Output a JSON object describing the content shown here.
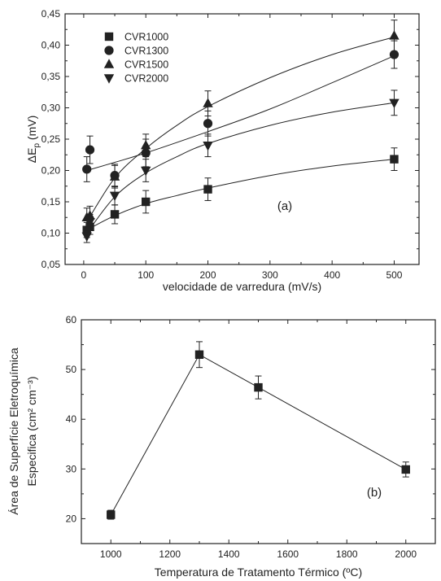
{
  "chart_data": [
    {
      "type": "scatter",
      "panel_label": "(a)",
      "xlabel": "velocidade de varredura (mV/s)",
      "ylabel_main": "ΔE",
      "ylabel_sub": "p",
      "ylabel_unit": " (mV)",
      "xlim": [
        -30,
        540
      ],
      "ylim": [
        0.05,
        0.45
      ],
      "xticks": [
        0,
        100,
        200,
        300,
        400,
        500
      ],
      "yticks": [
        0.05,
        0.1,
        0.15,
        0.2,
        0.25,
        0.3,
        0.35,
        0.4,
        0.45
      ],
      "ytick_labels": [
        "0,05",
        "0,10",
        "0,15",
        "0,20",
        "0,25",
        "0,30",
        "0,35",
        "0,40",
        "0,45"
      ],
      "legend_position": "top-left",
      "series": [
        {
          "name": "CVR1000",
          "marker": "square",
          "points": [
            {
              "x": 5,
              "y": 0.105,
              "err": 0.012
            },
            {
              "x": 10,
              "y": 0.11,
              "err": 0.012
            },
            {
              "x": 50,
              "y": 0.13,
              "err": 0.015
            },
            {
              "x": 100,
              "y": 0.15,
              "err": 0.018
            },
            {
              "x": 200,
              "y": 0.17,
              "err": 0.018
            },
            {
              "x": 500,
              "y": 0.218,
              "err": 0.018
            }
          ],
          "fit": [
            [
              5,
              0.105
            ],
            [
              50,
              0.128
            ],
            [
              100,
              0.147
            ],
            [
              150,
              0.16
            ],
            [
              200,
              0.172
            ],
            [
              300,
              0.192
            ],
            [
              400,
              0.207
            ],
            [
              500,
              0.218
            ]
          ]
        },
        {
          "name": "CVR1300",
          "marker": "circle",
          "points": [
            {
              "x": 5,
              "y": 0.202,
              "err": 0.02
            },
            {
              "x": 10,
              "y": 0.233,
              "err": 0.022
            },
            {
              "x": 50,
              "y": 0.192,
              "err": 0.018
            },
            {
              "x": 100,
              "y": 0.228,
              "err": 0.022
            },
            {
              "x": 200,
              "y": 0.275,
              "err": 0.02
            },
            {
              "x": 500,
              "y": 0.385,
              "err": 0.022
            }
          ],
          "fit": [
            [
              5,
              0.2
            ],
            [
              50,
              0.213
            ],
            [
              100,
              0.228
            ],
            [
              200,
              0.262
            ],
            [
              300,
              0.298
            ],
            [
              400,
              0.34
            ],
            [
              500,
              0.383
            ]
          ]
        },
        {
          "name": "CVR1500",
          "marker": "triangle-up",
          "points": [
            {
              "x": 5,
              "y": 0.125,
              "err": 0.015
            },
            {
              "x": 10,
              "y": 0.128,
              "err": 0.015
            },
            {
              "x": 50,
              "y": 0.19,
              "err": 0.018
            },
            {
              "x": 100,
              "y": 0.24,
              "err": 0.018
            },
            {
              "x": 200,
              "y": 0.307,
              "err": 0.02
            },
            {
              "x": 500,
              "y": 0.415,
              "err": 0.025
            }
          ],
          "fit": [
            [
              5,
              0.118
            ],
            [
              50,
              0.188
            ],
            [
              100,
              0.235
            ],
            [
              150,
              0.272
            ],
            [
              200,
              0.302
            ],
            [
              300,
              0.348
            ],
            [
              400,
              0.385
            ],
            [
              500,
              0.413
            ]
          ]
        },
        {
          "name": "CVR2000",
          "marker": "triangle-down",
          "points": [
            {
              "x": 5,
              "y": 0.095,
              "err": 0.01
            },
            {
              "x": 10,
              "y": 0.118,
              "err": 0.012
            },
            {
              "x": 50,
              "y": 0.16,
              "err": 0.015
            },
            {
              "x": 100,
              "y": 0.2,
              "err": 0.018
            },
            {
              "x": 200,
              "y": 0.24,
              "err": 0.018
            },
            {
              "x": 500,
              "y": 0.308,
              "err": 0.02
            }
          ],
          "fit": [
            [
              5,
              0.1
            ],
            [
              50,
              0.158
            ],
            [
              100,
              0.196
            ],
            [
              150,
              0.222
            ],
            [
              200,
              0.243
            ],
            [
              300,
              0.272
            ],
            [
              400,
              0.293
            ],
            [
              500,
              0.308
            ]
          ]
        }
      ]
    },
    {
      "type": "line",
      "panel_label": "(b)",
      "xlabel": "Temperatura de Tratamento Térmico (ºC)",
      "ylabel_line1": "Área de Superfície Eletroquímica",
      "ylabel_line2": "Especifica (cm² cm⁻³)",
      "xlim": [
        900,
        2100
      ],
      "ylim": [
        15,
        60
      ],
      "xticks": [
        1000,
        1200,
        1400,
        1600,
        1800,
        2000
      ],
      "yticks": [
        20,
        30,
        40,
        50,
        60
      ],
      "series": [
        {
          "marker": "square",
          "points": [
            {
              "x": 1000,
              "y": 20.8,
              "err": 0.9
            },
            {
              "x": 1300,
              "y": 53.0,
              "err": 2.6
            },
            {
              "x": 1500,
              "y": 46.4,
              "err": 2.3
            },
            {
              "x": 2000,
              "y": 29.9,
              "err": 1.5
            }
          ]
        }
      ]
    }
  ]
}
